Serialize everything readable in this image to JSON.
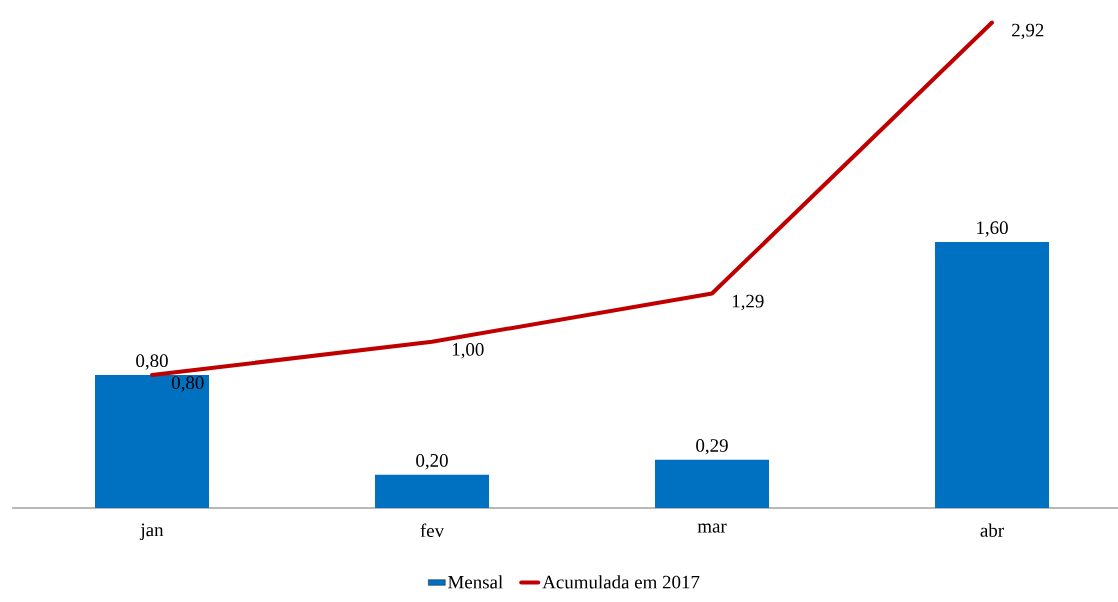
{
  "chart_data": {
    "type": "bar",
    "categories": [
      "jan",
      "fev",
      "mar",
      "abr"
    ],
    "legend": "bottom",
    "series": [
      {
        "name": "Mensal",
        "color": "#0070c0",
        "values": [
          0.8,
          0.2,
          0.29,
          1.6
        ],
        "value_labels": [
          "0,80",
          "0,20",
          "0,29",
          "1,60"
        ]
      },
      {
        "name": "Acumulada em 2017",
        "type": "line",
        "color": "#c00000",
        "values": [
          0.8,
          1.0,
          1.29,
          2.92
        ],
        "value_labels": [
          "0,80",
          "1,00",
          "1,29",
          "2,92"
        ]
      }
    ]
  }
}
